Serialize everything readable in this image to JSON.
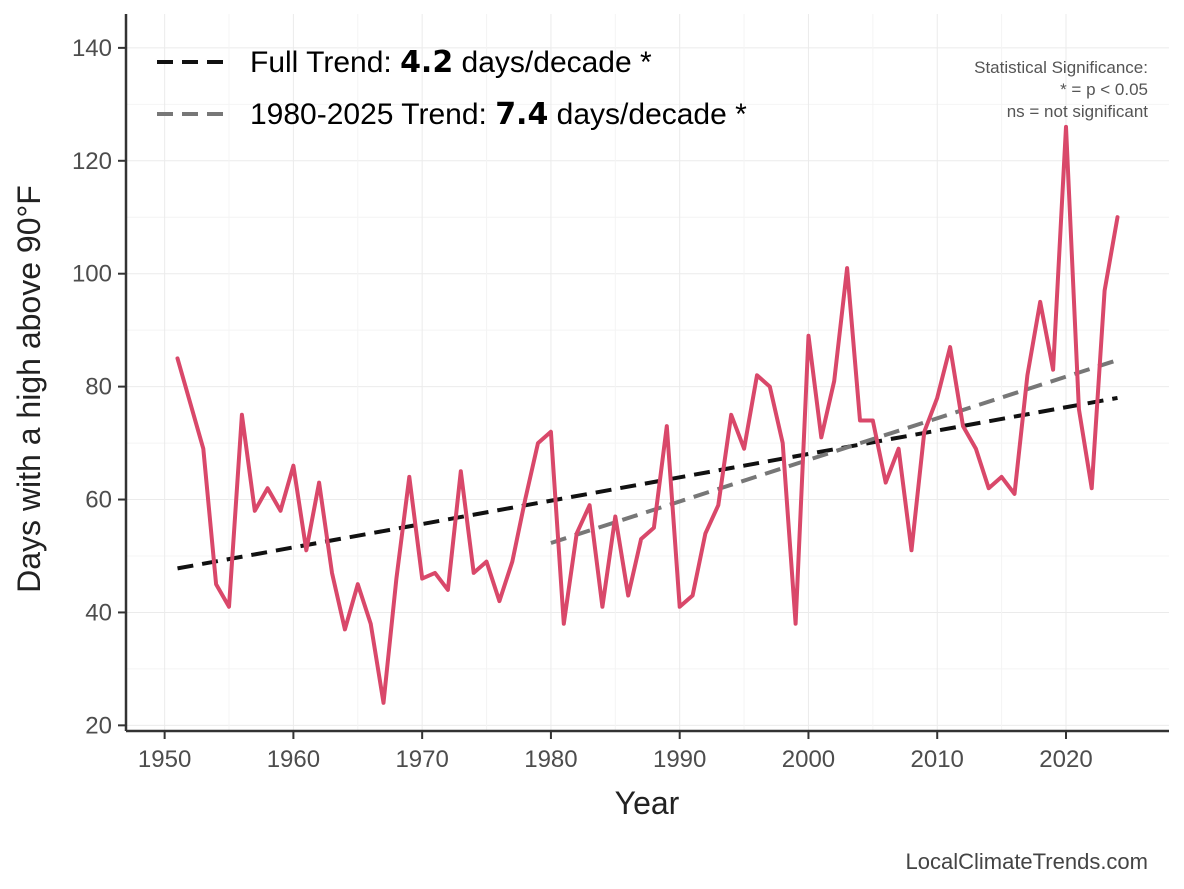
{
  "chart_data": {
    "type": "line",
    "xlabel": "Year",
    "ylabel": "Days with a high above 90°F",
    "xlim": [
      1947,
      2028
    ],
    "ylim": [
      19,
      146
    ],
    "xticks": [
      1950,
      1960,
      1970,
      1980,
      1990,
      2000,
      2010,
      2020
    ],
    "yticks": [
      20,
      40,
      60,
      80,
      100,
      120,
      140
    ],
    "grid": true,
    "series": [
      {
        "color": "#d9486a",
        "x": [
          1951,
          1952,
          1953,
          1954,
          1955,
          1956,
          1957,
          1958,
          1959,
          1960,
          1961,
          1962,
          1963,
          1964,
          1965,
          1966,
          1967,
          1968,
          1969,
          1970,
          1971,
          1972,
          1973,
          1974,
          1975,
          1976,
          1977,
          1978,
          1979,
          1980,
          1981,
          1982,
          1983,
          1984,
          1985,
          1986,
          1987,
          1988,
          1989,
          1990,
          1991,
          1992,
          1993,
          1994,
          1995,
          1996,
          1997,
          1998,
          1999,
          2000,
          2001,
          2002,
          2003,
          2004,
          2005,
          2006,
          2007,
          2008,
          2009,
          2010,
          2011,
          2012,
          2013,
          2014,
          2015,
          2016,
          2017,
          2018,
          2019,
          2020,
          2021,
          2022,
          2023,
          2024
        ],
        "y": [
          85,
          77,
          69,
          45,
          41,
          75,
          58,
          62,
          58,
          66,
          51,
          63,
          47,
          37,
          45,
          38,
          24,
          46,
          64,
          46,
          47,
          44,
          65,
          47,
          49,
          42,
          49,
          60,
          70,
          72,
          38,
          54,
          59,
          41,
          57,
          43,
          53,
          55,
          73,
          41,
          43,
          54,
          59,
          75,
          69,
          82,
          80,
          70,
          38,
          89,
          71,
          81,
          101,
          74,
          74,
          63,
          69,
          51,
          72,
          78,
          87,
          73,
          69,
          62,
          64,
          61,
          82,
          95,
          83,
          126,
          76,
          62,
          97,
          110
        ]
      }
    ],
    "trends": [
      {
        "label_prefix": "Full Trend: ",
        "value": "4.2",
        "label_suffix": " days/decade *",
        "color": "#111111",
        "x": [
          1951,
          2024
        ],
        "y": [
          47.8,
          78.0
        ]
      },
      {
        "label_prefix": "1980-2025 Trend: ",
        "value": "7.4",
        "label_suffix": " days/decade *",
        "color": "#777777",
        "x": [
          1980,
          2024
        ],
        "y": [
          52.3,
          84.7
        ]
      }
    ],
    "legend_position": "top-left",
    "annotation": {
      "line1": "Statistical Significance:",
      "line2": "* = p < 0.05",
      "line3": "ns = not significant"
    },
    "credit": "LocalClimateTrends.com"
  }
}
